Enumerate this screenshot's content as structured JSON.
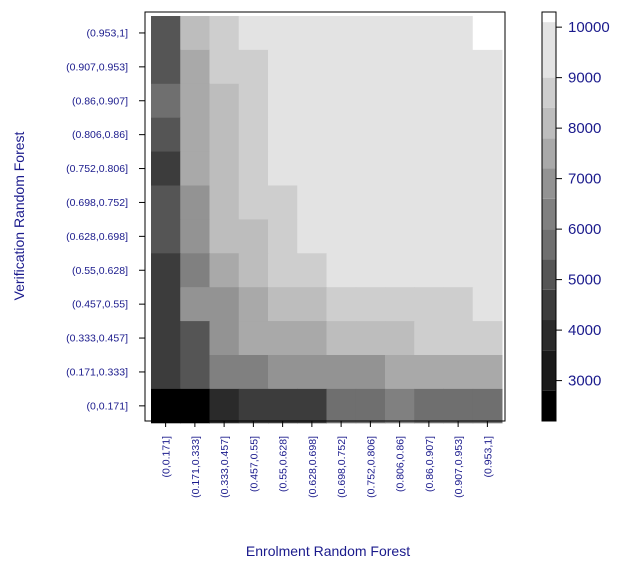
{
  "chart_data": {
    "type": "heatmap",
    "title": "",
    "xlabel": "Enrolment Random Forest",
    "ylabel": "Verification Random Forest",
    "x_categories": [
      "(0,0.171]",
      "(0.171,0.333]",
      "(0.333,0.457]",
      "(0.457,0.55]",
      "(0.55,0.628]",
      "(0.628,0.698]",
      "(0.698,0.752]",
      "(0.752,0.806]",
      "(0.806,0.86]",
      "(0.86,0.907]",
      "(0.907,0.953]",
      "(0.953,1]"
    ],
    "y_categories_top_to_bottom": [
      "(0.953,1]",
      "(0.907,0.953]",
      "(0.86,0.907]",
      "(0.806,0.86]",
      "(0.752,0.806]",
      "(0.698,0.752]",
      "(0.628,0.698]",
      "(0.55,0.628]",
      "(0.457,0.55]",
      "(0.333,0.457]",
      "(0.171,0.333]",
      "(0,0.171]"
    ],
    "values_top_to_bottom": [
      [
        5200,
        7800,
        8500,
        9400,
        9400,
        9800,
        9800,
        9800,
        9800,
        9800,
        9800,
        10200
      ],
      [
        5200,
        7300,
        8500,
        8500,
        9400,
        9400,
        9800,
        9800,
        9800,
        9800,
        9800,
        9800
      ],
      [
        5600,
        7300,
        8000,
        8500,
        9400,
        9400,
        9800,
        9800,
        9800,
        9800,
        9800,
        9800
      ],
      [
        5200,
        7300,
        8000,
        8500,
        9400,
        9400,
        9800,
        9800,
        9800,
        9800,
        9800,
        9800
      ],
      [
        4700,
        7300,
        8000,
        8500,
        9400,
        9400,
        9400,
        9800,
        9800,
        9800,
        9800,
        9800
      ],
      [
        5200,
        6900,
        8000,
        8500,
        8500,
        9400,
        9400,
        9400,
        9400,
        9400,
        9800,
        9800
      ],
      [
        5200,
        6900,
        8000,
        8000,
        8500,
        9400,
        9400,
        9400,
        9400,
        10000,
        9400,
        9800
      ],
      [
        4700,
        6400,
        7600,
        8000,
        8500,
        8500,
        9400,
        9400,
        9400,
        9400,
        9400,
        9400
      ],
      [
        4700,
        6900,
        6900,
        7600,
        8000,
        8000,
        8500,
        8500,
        8500,
        8500,
        8500,
        9400
      ],
      [
        4200,
        5200,
        6900,
        7600,
        7600,
        7600,
        8000,
        8000,
        8000,
        8500,
        8500,
        8500
      ],
      [
        4200,
        5200,
        6400,
        6400,
        6900,
        6900,
        6900,
        6900,
        7600,
        7600,
        7600,
        7600
      ],
      [
        2200,
        2700,
        3600,
        4700,
        4700,
        4700,
        5600,
        5600,
        6400,
        5600,
        5600,
        5600
      ]
    ],
    "colorbar": {
      "ticks": [
        3000,
        4000,
        5000,
        6000,
        7000,
        8000,
        9000,
        10000
      ],
      "range": [
        2200,
        10300
      ],
      "colors": [
        "#000000",
        "#1a1a1a",
        "#2a2a2a",
        "#3c3c3c",
        "#555555",
        "#6f6f6f",
        "#808080",
        "#939393",
        "#a9a9a9",
        "#bdbdbd",
        "#cecece",
        "#e3e3e3",
        "#ffffff"
      ],
      "breaks": [
        2200,
        2800,
        3600,
        4200,
        4800,
        5400,
        6000,
        6600,
        7200,
        7800,
        8400,
        9000,
        10100,
        10300
      ]
    },
    "text_color": "#1a1a8c",
    "grid": false,
    "legend": "colorbar-right"
  }
}
